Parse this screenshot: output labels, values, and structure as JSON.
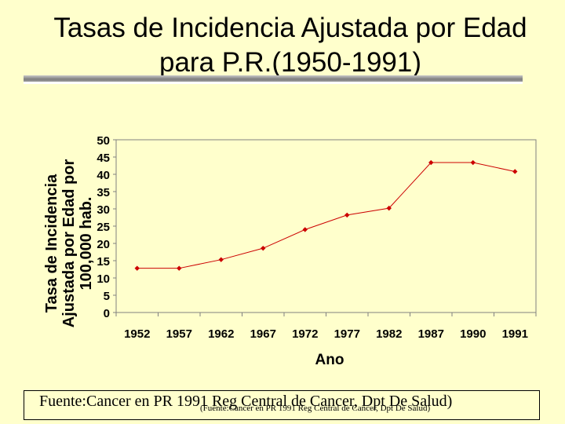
{
  "chart_data": {
    "type": "line",
    "title": "Tasas de Incidencia Ajustada por Edad para P.R.(1950-1991)",
    "xlabel": "Ano",
    "ylabel": "Tasa de Incidencia\nAjustada por Edad por\n100,000 hab.",
    "categories": [
      "1952",
      "1957",
      "1962",
      "1967",
      "1972",
      "1977",
      "1982",
      "1987",
      "1990",
      "1991"
    ],
    "values": [
      12.8,
      12.8,
      15.3,
      18.6,
      24.0,
      28.2,
      30.2,
      43.4,
      43.4,
      40.8
    ],
    "ylim": [
      0,
      50
    ],
    "yticks": [
      "0",
      "5",
      "10",
      "15",
      "20",
      "25",
      "30",
      "35",
      "40",
      "45",
      "50"
    ],
    "grid": false,
    "legend": "none",
    "line_color": "#cc0000"
  },
  "source": {
    "main": "Fuente:Cancer en PR 1991 Reg Central de Cancer, Dpt De Salud)",
    "small": "(Fuente:Cancer en PR 1991 Reg Central de Cancer, Dpt De Salud)"
  }
}
